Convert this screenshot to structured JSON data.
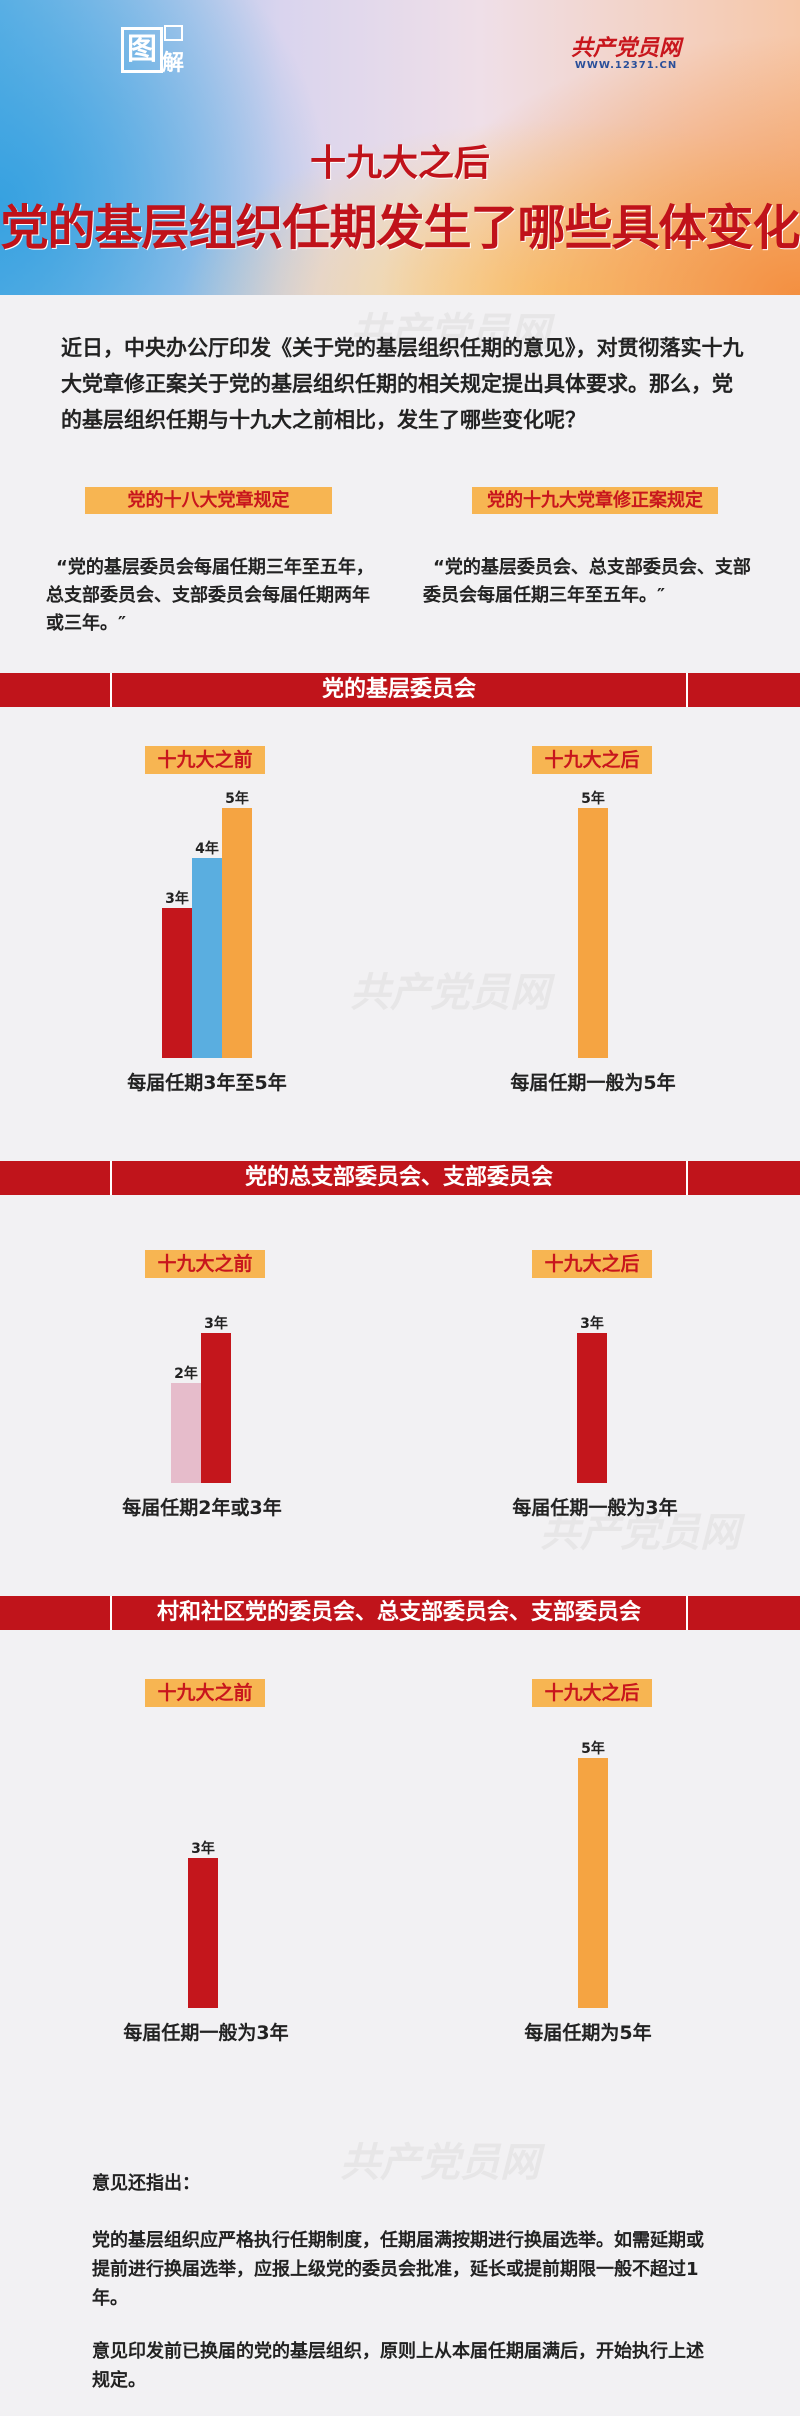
{
  "header": {
    "logo_left": "图解",
    "logo_site_name": "共产党员网",
    "logo_site_url": "WWW.12371.CN",
    "title_line1": "十九大之后",
    "title_line2": "党的基层组织任期发生了哪些具体变化"
  },
  "intro": "近日，中央办公厅印发《关于党的基层组织任期的意见》，对贯彻落实十九大党章修正案关于党的基层组织任期的相关规定提出具体要求。那么，党的基层组织任期与十九大之前相比，发生了哪些变化呢？",
  "rules": {
    "left_label": "党的十八大党章规定",
    "right_label": "党的十九大党章修正案规定",
    "left_quote": [
      "“党的基层委员会每届任期三年至五年，",
      "总支部委员会、支部委员会每届任期两年",
      "或三年。″"
    ],
    "right_quote": [
      "“党的基层委员会、总支部委员会、支部",
      "委员会每届任期三年至五年。″"
    ]
  },
  "colors": {
    "banner": "#c0141b",
    "pill": "#f7b552",
    "pill_text": "#c8161d",
    "bar_red": "#c4161c",
    "bar_blue": "#5aaee0",
    "bar_orange": "#f5a442",
    "bar_pink": "#e6bccb"
  },
  "chart_data": [
    {
      "type": "bar",
      "title": "党的基层委员会",
      "groups": [
        {
          "label": "十九大之前",
          "caption": "每届任期3年至5年",
          "bars": [
            {
              "value": 3,
              "label": "3年",
              "color": "#c4161c"
            },
            {
              "value": 4,
              "label": "4年",
              "color": "#5aaee0"
            },
            {
              "value": 5,
              "label": "5年",
              "color": "#f5a442"
            }
          ]
        },
        {
          "label": "十九大之后",
          "caption": "每届任期一般为5年",
          "bars": [
            {
              "value": 5,
              "label": "5年",
              "color": "#f5a442"
            }
          ]
        }
      ]
    },
    {
      "type": "bar",
      "title": "党的总支部委员会、支部委员会",
      "groups": [
        {
          "label": "十九大之前",
          "caption": "每届任期2年或3年",
          "bars": [
            {
              "value": 2,
              "label": "2年",
              "color": "#e6bccb"
            },
            {
              "value": 3,
              "label": "3年",
              "color": "#c4161c"
            }
          ]
        },
        {
          "label": "十九大之后",
          "caption": "每届任期一般为3年",
          "bars": [
            {
              "value": 3,
              "label": "3年",
              "color": "#c4161c"
            }
          ]
        }
      ]
    },
    {
      "type": "bar",
      "title": "村和社区党的委员会、总支部委员会、支部委员会",
      "groups": [
        {
          "label": "十九大之前",
          "caption": "每届任期一般为3年",
          "bars": [
            {
              "value": 3,
              "label": "3年",
              "color": "#c4161c"
            }
          ]
        },
        {
          "label": "十九大之后",
          "caption": "每届任期为5年",
          "bars": [
            {
              "value": 5,
              "label": "5年",
              "color": "#f5a442"
            }
          ]
        }
      ]
    }
  ],
  "notes": {
    "heading": "意见还指出：",
    "paragraph1": "党的基层组织应严格执行任期制度，任期届满按期进行换届选举。如需延期或提前进行换届选举，应报上级党的委员会批准，延长或提前期限一般不超过1年。",
    "paragraph2": "意见印发前已换届的党的基层组织，原则上从本届任期届满后，开始执行上述规定。"
  },
  "watermark": "共产党员网 WWW.12371.CN"
}
